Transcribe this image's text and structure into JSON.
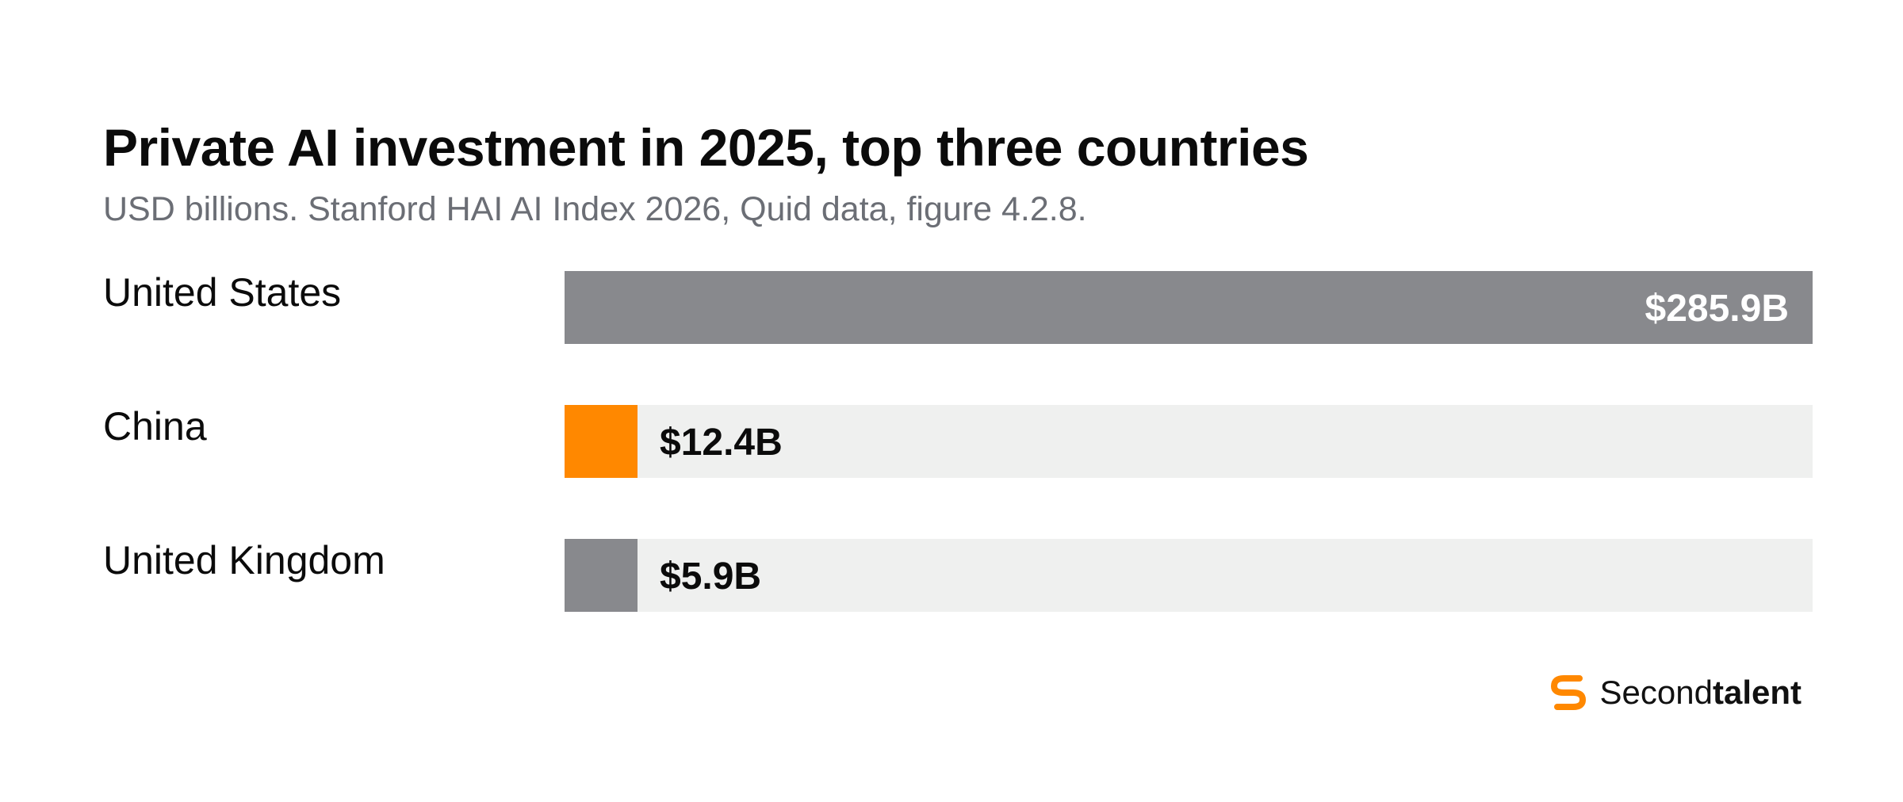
{
  "chart_data": {
    "type": "bar",
    "orientation": "horizontal",
    "title": "Private AI investment in 2025, top three countries",
    "subtitle": "USD billions. Stanford HAI AI Index 2026, Quid data, figure 4.2.8.",
    "categories": [
      "United States",
      "China",
      "United Kingdom"
    ],
    "values": [
      285.9,
      12.4,
      5.9
    ],
    "value_labels": [
      "$285.9B",
      "$12.4B",
      "$5.9B"
    ],
    "unit": "USD billions",
    "xlim": [
      0,
      285.9
    ],
    "grid": false,
    "legend": "none",
    "colors": {
      "United States": "#88898d",
      "China": "#ff8800",
      "United Kingdom": "#88898d",
      "track": "#eff0ef",
      "value_on_bar": "#ffffff",
      "value_off_bar": "#0b0b0b"
    }
  },
  "logo": {
    "text_light": "Second",
    "text_bold": "talent",
    "mark_color": "#ff8800",
    "icon": "secondtalent-logo-icon"
  }
}
